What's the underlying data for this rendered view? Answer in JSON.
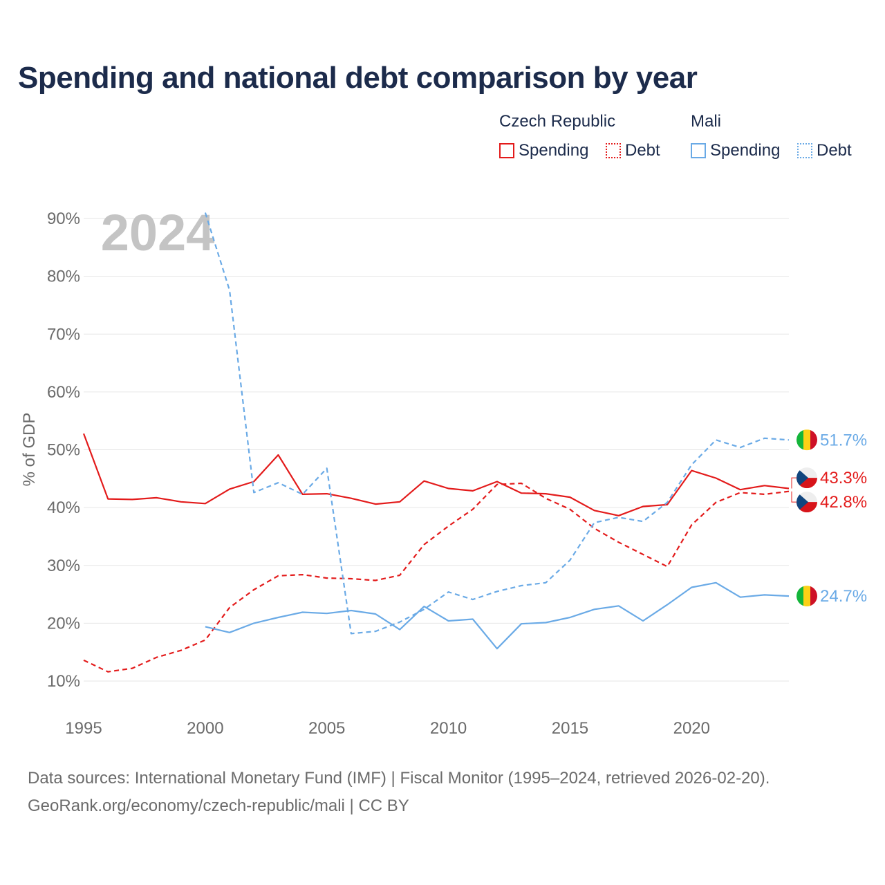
{
  "title": "Spending and national debt comparison by year",
  "legend": {
    "groups": [
      {
        "name": "Czech Republic",
        "color": "#e31b1b",
        "items": [
          {
            "label": "Spending",
            "style": "solid"
          },
          {
            "label": "Debt",
            "style": "dotted"
          }
        ]
      },
      {
        "name": "Mali",
        "color": "#6aaae6",
        "items": [
          {
            "label": "Spending",
            "style": "solid"
          },
          {
            "label": "Debt",
            "style": "dotted"
          }
        ]
      }
    ]
  },
  "year_watermark": "2024",
  "sources": {
    "line1": "Data sources: International Monetary Fund (IMF) | Fiscal Monitor (1995–2024, retrieved 2026-02-20).",
    "line2": "GeoRank.org/economy/czech-republic/mali | CC BY"
  },
  "chart_data": {
    "type": "line",
    "title": "Spending and national debt comparison by year",
    "ylabel": "% of GDP",
    "xlabel": "",
    "xlim": [
      1995,
      2024
    ],
    "ylim": [
      10,
      90
    ],
    "x_ticks": [
      1995,
      2000,
      2005,
      2010,
      2015,
      2020
    ],
    "y_ticks": [
      10,
      20,
      30,
      40,
      50,
      60,
      70,
      80,
      90
    ],
    "y_tick_labels": [
      "10%",
      "20%",
      "30%",
      "40%",
      "50%",
      "60%",
      "70%",
      "80%",
      "90%"
    ],
    "grid": true,
    "series": [
      {
        "name": "Czech Republic Spending",
        "country": "Czech Republic",
        "metric": "Spending",
        "color": "#e31b1b",
        "dash": "solid",
        "end_label": "43.3%",
        "points": [
          [
            1995,
            52.8
          ],
          [
            1996,
            41.5
          ],
          [
            1997,
            41.4
          ],
          [
            1998,
            41.7
          ],
          [
            1999,
            41.0
          ],
          [
            2000,
            40.7
          ],
          [
            2001,
            43.2
          ],
          [
            2002,
            44.5
          ],
          [
            2003,
            49.1
          ],
          [
            2004,
            42.3
          ],
          [
            2005,
            42.4
          ],
          [
            2006,
            41.6
          ],
          [
            2007,
            40.6
          ],
          [
            2008,
            41.0
          ],
          [
            2009,
            44.6
          ],
          [
            2010,
            43.3
          ],
          [
            2011,
            42.9
          ],
          [
            2012,
            44.5
          ],
          [
            2013,
            42.5
          ],
          [
            2014,
            42.4
          ],
          [
            2015,
            41.8
          ],
          [
            2016,
            39.5
          ],
          [
            2017,
            38.6
          ],
          [
            2018,
            40.2
          ],
          [
            2019,
            40.5
          ],
          [
            2020,
            46.4
          ],
          [
            2021,
            45.1
          ],
          [
            2022,
            43.1
          ],
          [
            2023,
            43.8
          ],
          [
            2024,
            43.3
          ]
        ]
      },
      {
        "name": "Czech Republic Debt",
        "country": "Czech Republic",
        "metric": "Debt",
        "color": "#e31b1b",
        "dash": "dashed",
        "end_label": "42.8%",
        "points": [
          [
            1995,
            13.6
          ],
          [
            1996,
            11.6
          ],
          [
            1997,
            12.2
          ],
          [
            1998,
            14.1
          ],
          [
            1999,
            15.3
          ],
          [
            2000,
            17.1
          ],
          [
            2001,
            22.7
          ],
          [
            2002,
            25.8
          ],
          [
            2003,
            28.2
          ],
          [
            2004,
            28.4
          ],
          [
            2005,
            27.8
          ],
          [
            2006,
            27.7
          ],
          [
            2007,
            27.4
          ],
          [
            2008,
            28.3
          ],
          [
            2009,
            33.6
          ],
          [
            2010,
            36.8
          ],
          [
            2011,
            39.7
          ],
          [
            2012,
            44.0
          ],
          [
            2013,
            44.2
          ],
          [
            2014,
            41.6
          ],
          [
            2015,
            39.7
          ],
          [
            2016,
            36.4
          ],
          [
            2017,
            34.0
          ],
          [
            2018,
            31.9
          ],
          [
            2019,
            29.8
          ],
          [
            2020,
            37.0
          ],
          [
            2021,
            40.9
          ],
          [
            2022,
            42.6
          ],
          [
            2023,
            42.3
          ],
          [
            2024,
            42.8
          ]
        ]
      },
      {
        "name": "Mali Spending",
        "country": "Mali",
        "metric": "Spending",
        "color": "#6aaae6",
        "dash": "solid",
        "end_label": "24.7%",
        "points": [
          [
            2000,
            19.4
          ],
          [
            2001,
            18.4
          ],
          [
            2002,
            20.0
          ],
          [
            2003,
            21.0
          ],
          [
            2004,
            21.9
          ],
          [
            2005,
            21.7
          ],
          [
            2006,
            22.2
          ],
          [
            2007,
            21.6
          ],
          [
            2008,
            18.9
          ],
          [
            2009,
            22.9
          ],
          [
            2010,
            20.4
          ],
          [
            2011,
            20.7
          ],
          [
            2012,
            15.6
          ],
          [
            2013,
            19.9
          ],
          [
            2014,
            20.1
          ],
          [
            2015,
            21.0
          ],
          [
            2016,
            22.4
          ],
          [
            2017,
            23.0
          ],
          [
            2018,
            20.4
          ],
          [
            2019,
            23.2
          ],
          [
            2020,
            26.2
          ],
          [
            2021,
            27.0
          ],
          [
            2022,
            24.5
          ],
          [
            2023,
            24.9
          ],
          [
            2024,
            24.7
          ]
        ]
      },
      {
        "name": "Mali Debt",
        "country": "Mali",
        "metric": "Debt",
        "color": "#6aaae6",
        "dash": "dashed",
        "end_label": "51.7%",
        "points": [
          [
            2000,
            91.0
          ],
          [
            2001,
            77.6
          ],
          [
            2002,
            42.6
          ],
          [
            2003,
            44.3
          ],
          [
            2004,
            42.3
          ],
          [
            2005,
            46.8
          ],
          [
            2006,
            18.2
          ],
          [
            2007,
            18.6
          ],
          [
            2008,
            20.2
          ],
          [
            2009,
            22.4
          ],
          [
            2010,
            25.4
          ],
          [
            2011,
            24.1
          ],
          [
            2012,
            25.5
          ],
          [
            2013,
            26.5
          ],
          [
            2014,
            27.0
          ],
          [
            2015,
            30.9
          ],
          [
            2016,
            37.4
          ],
          [
            2017,
            38.3
          ],
          [
            2018,
            37.6
          ],
          [
            2019,
            40.9
          ],
          [
            2020,
            47.4
          ],
          [
            2021,
            51.7
          ],
          [
            2022,
            50.4
          ],
          [
            2023,
            52.0
          ],
          [
            2024,
            51.7
          ]
        ]
      }
    ]
  }
}
